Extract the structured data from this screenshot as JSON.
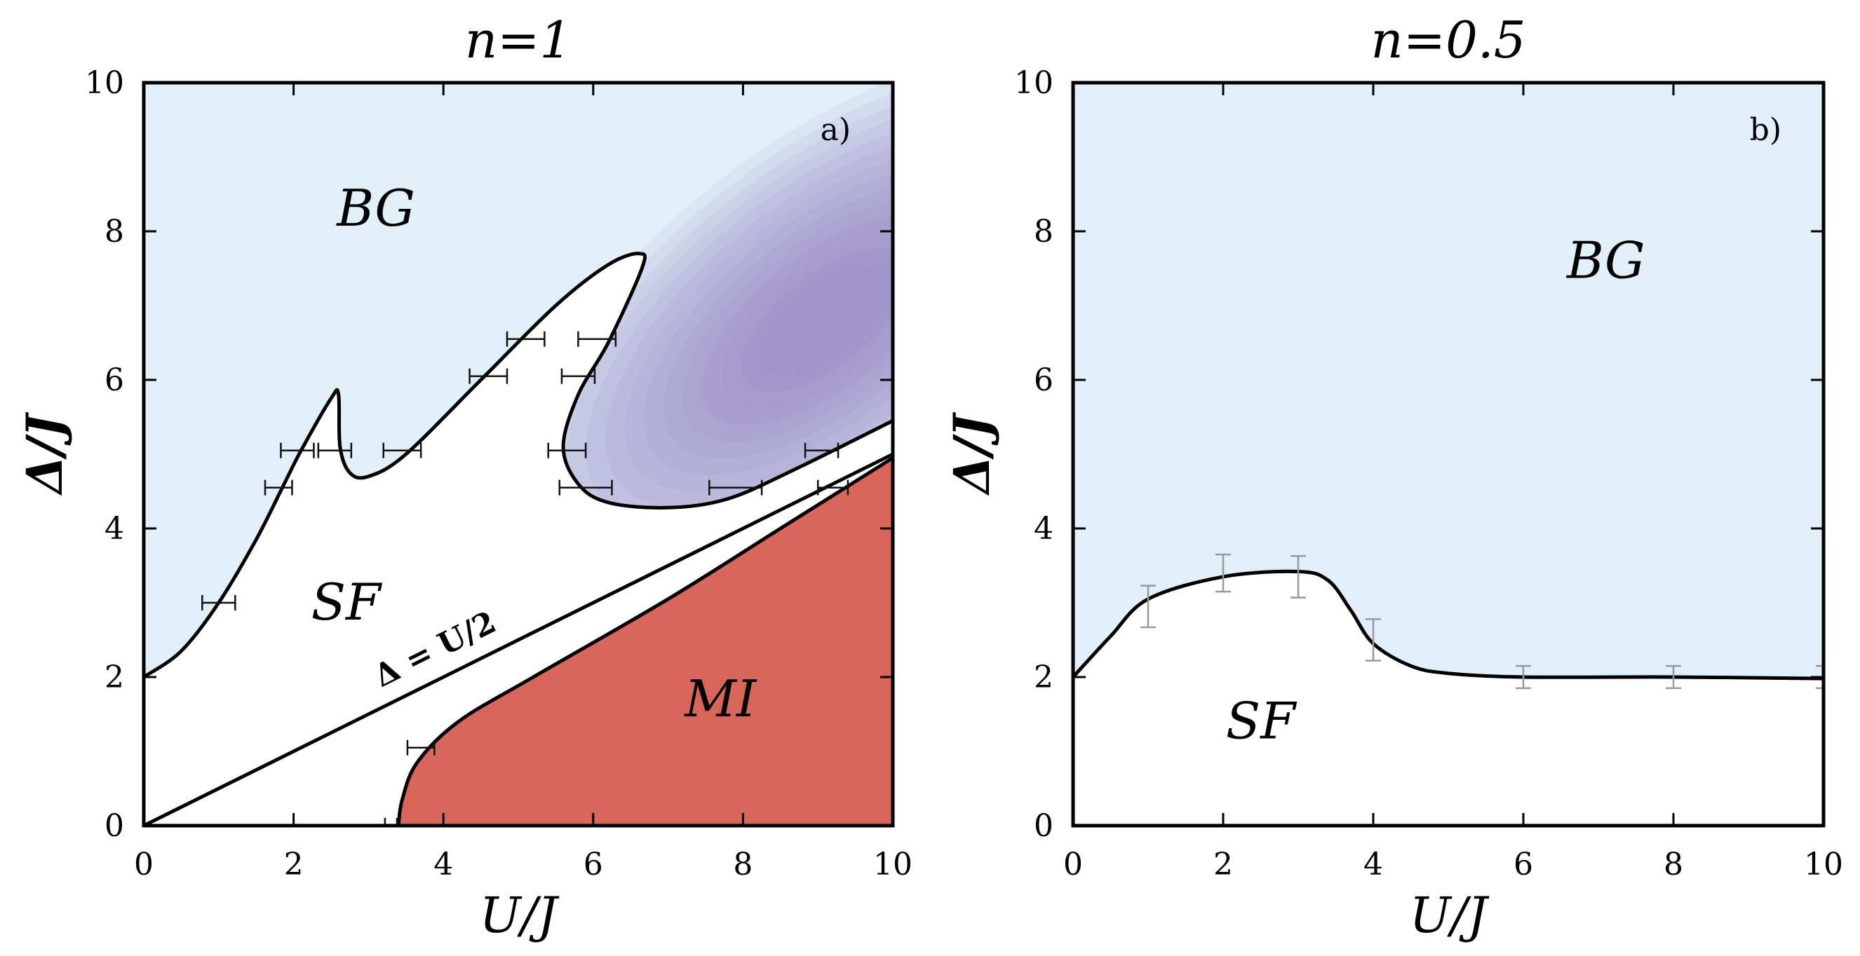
{
  "colors": {
    "bg_region": "#e1f0f8",
    "mi_region": "#d9665a",
    "glass_dark": "#8c78b4",
    "glass_light": "#e1f0f8",
    "line": "#000000",
    "errorbar_a": "#111111",
    "errorbar_b": "#999999"
  },
  "chart_data": [
    {
      "type": "area",
      "title": "n=1",
      "panel_label": "a)",
      "xlabel": "U/J",
      "ylabel": "Δ/J",
      "xlim": [
        0,
        10
      ],
      "ylim": [
        0,
        10
      ],
      "xticks": [
        0,
        2,
        4,
        6,
        8,
        10
      ],
      "yticks": [
        0,
        2,
        4,
        6,
        8,
        10
      ],
      "grid": false,
      "regions": [
        {
          "label": "BG",
          "at": [
            3.1,
            8.3
          ]
        },
        {
          "label": "SF",
          "at": [
            2.7,
            3.0
          ]
        },
        {
          "label": "MI",
          "at": [
            7.7,
            1.7
          ]
        }
      ],
      "line_label": {
        "text": "Δ = U/2",
        "at": [
          3.95,
          2.25
        ]
      },
      "sf_bg_boundary": [
        [
          0,
          2.0
        ],
        [
          0.5,
          2.35
        ],
        [
          1.0,
          3.0
        ],
        [
          1.5,
          3.85
        ],
        [
          1.85,
          4.55
        ],
        [
          2.1,
          5.05
        ],
        [
          2.5,
          5.75
        ],
        [
          2.6,
          5.8
        ],
        [
          2.62,
          5.1
        ],
        [
          2.75,
          4.75
        ],
        [
          3.0,
          4.7
        ],
        [
          3.5,
          5.0
        ],
        [
          4.5,
          6.0
        ],
        [
          5.5,
          7.0
        ],
        [
          6.2,
          7.55
        ],
        [
          6.62,
          7.7
        ],
        [
          6.65,
          7.5
        ],
        [
          6.2,
          6.5
        ],
        [
          5.8,
          5.8
        ],
        [
          5.6,
          5.1
        ],
        [
          5.8,
          4.6
        ],
        [
          6.2,
          4.35
        ],
        [
          7.0,
          4.28
        ],
        [
          7.8,
          4.4
        ],
        [
          8.7,
          4.8
        ],
        [
          10,
          5.45
        ]
      ],
      "sf_mi_boundary": [
        [
          3.4,
          0
        ],
        [
          3.45,
          0.35
        ],
        [
          3.65,
          0.85
        ],
        [
          4.2,
          1.4
        ],
        [
          5.2,
          2.0
        ],
        [
          7.0,
          3.05
        ],
        [
          8.5,
          4.0
        ],
        [
          10,
          4.95
        ]
      ],
      "line_delta_u_half": [
        [
          0,
          0
        ],
        [
          10,
          5
        ]
      ],
      "error_bars": [
        {
          "x": 1.0,
          "y": 3.0,
          "dx": 0.22
        },
        {
          "x": 1.8,
          "y": 4.55,
          "dx": 0.18
        },
        {
          "x": 2.05,
          "y": 5.05,
          "dx": 0.22
        },
        {
          "x": 2.55,
          "y": 5.05,
          "dx": 0.22
        },
        {
          "x": 3.45,
          "y": 5.05,
          "dx": 0.25
        },
        {
          "x": 4.6,
          "y": 6.05,
          "dx": 0.25
        },
        {
          "x": 5.1,
          "y": 6.55,
          "dx": 0.25
        },
        {
          "x": 5.8,
          "y": 6.05,
          "dx": 0.22
        },
        {
          "x": 6.05,
          "y": 6.55,
          "dx": 0.25
        },
        {
          "x": 5.65,
          "y": 5.05,
          "dx": 0.25
        },
        {
          "x": 5.9,
          "y": 4.55,
          "dx": 0.35
        },
        {
          "x": 7.9,
          "y": 4.55,
          "dx": 0.35
        },
        {
          "x": 9.05,
          "y": 5.05,
          "dx": 0.22
        },
        {
          "x": 9.2,
          "y": 4.55,
          "dx": 0.2
        },
        {
          "x": 3.7,
          "y": 1.05,
          "dx": 0.18
        },
        {
          "x": 3.3,
          "y": 0.0,
          "dx": 0.08
        }
      ]
    },
    {
      "type": "area",
      "title": "n=0.5",
      "panel_label": "b)",
      "xlabel": "U/J",
      "ylabel": "Δ/J",
      "xlim": [
        0,
        10
      ],
      "ylim": [
        0,
        10
      ],
      "xticks": [
        0,
        2,
        4,
        6,
        8,
        10
      ],
      "yticks": [
        0,
        2,
        4,
        6,
        8,
        10
      ],
      "grid": false,
      "regions": [
        {
          "label": "BG",
          "at": [
            7.1,
            7.6
          ]
        },
        {
          "label": "SF",
          "at": [
            2.5,
            1.4
          ]
        }
      ],
      "sf_bg_boundary": [
        [
          0,
          2.0
        ],
        [
          0.5,
          2.55
        ],
        [
          1.0,
          3.05
        ],
        [
          2.0,
          3.35
        ],
        [
          3.0,
          3.42
        ],
        [
          3.4,
          3.3
        ],
        [
          3.7,
          2.9
        ],
        [
          4.0,
          2.45
        ],
        [
          4.5,
          2.15
        ],
        [
          5.0,
          2.05
        ],
        [
          6.0,
          2.0
        ],
        [
          8.0,
          2.0
        ],
        [
          10,
          1.98
        ]
      ],
      "error_bars": [
        {
          "x": 1.0,
          "y": 2.95,
          "dy": 0.28
        },
        {
          "x": 2.0,
          "y": 3.4,
          "dy": 0.25
        },
        {
          "x": 3.0,
          "y": 3.35,
          "dy": 0.28
        },
        {
          "x": 4.0,
          "y": 2.5,
          "dy": 0.28
        },
        {
          "x": 6.0,
          "y": 2.0,
          "dy": 0.15
        },
        {
          "x": 8.0,
          "y": 2.0,
          "dy": 0.15
        },
        {
          "x": 10.0,
          "y": 2.0,
          "dy": 0.15
        }
      ]
    }
  ]
}
